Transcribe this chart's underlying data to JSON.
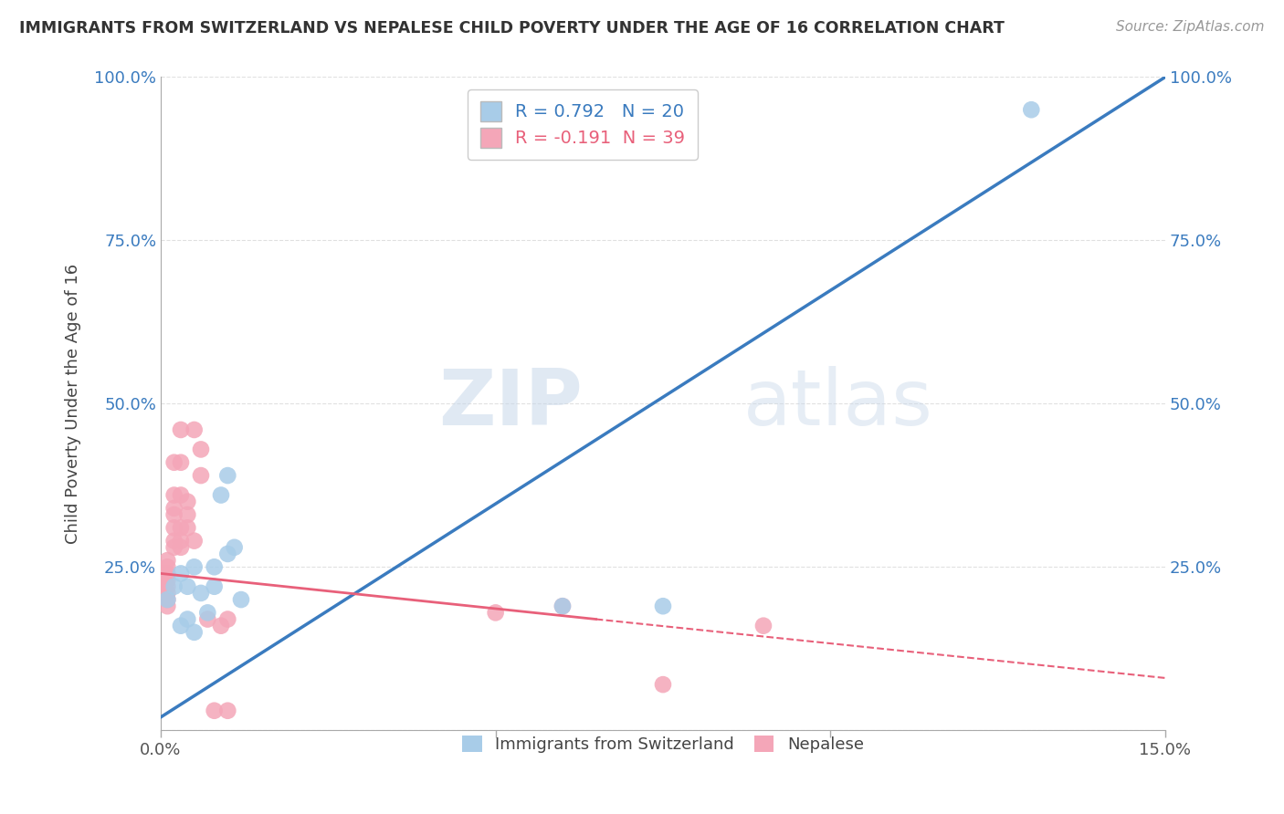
{
  "title": "IMMIGRANTS FROM SWITZERLAND VS NEPALESE CHILD POVERTY UNDER THE AGE OF 16 CORRELATION CHART",
  "source": "Source: ZipAtlas.com",
  "ylabel": "Child Poverty Under the Age of 16",
  "xlabel": "",
  "xlim": [
    0,
    0.15
  ],
  "ylim": [
    0,
    1.0
  ],
  "xticks": [
    0.0,
    0.05,
    0.1,
    0.15
  ],
  "xticklabels": [
    "0.0%",
    "",
    "",
    "15.0%"
  ],
  "yticks": [
    0.0,
    0.25,
    0.5,
    0.75,
    1.0
  ],
  "yticklabels_left": [
    "",
    "25.0%",
    "50.0%",
    "75.0%",
    "100.0%"
  ],
  "yticklabels_right": [
    "",
    "25.0%",
    "50.0%",
    "75.0%",
    "100.0%"
  ],
  "blue_R": 0.792,
  "blue_N": 20,
  "pink_R": -0.191,
  "pink_N": 39,
  "blue_color": "#A8CCE8",
  "pink_color": "#F4A6B8",
  "blue_line_color": "#3A7BBF",
  "pink_line_color": "#E8607A",
  "watermark_zip": "ZIP",
  "watermark_atlas": "atlas",
  "legend_label_blue": "Immigrants from Switzerland",
  "legend_label_pink": "Nepalese",
  "blue_scatter": [
    [
      0.001,
      0.2
    ],
    [
      0.002,
      0.22
    ],
    [
      0.003,
      0.16
    ],
    [
      0.003,
      0.24
    ],
    [
      0.004,
      0.22
    ],
    [
      0.004,
      0.17
    ],
    [
      0.005,
      0.15
    ],
    [
      0.005,
      0.25
    ],
    [
      0.006,
      0.21
    ],
    [
      0.007,
      0.18
    ],
    [
      0.008,
      0.22
    ],
    [
      0.008,
      0.25
    ],
    [
      0.009,
      0.36
    ],
    [
      0.01,
      0.39
    ],
    [
      0.01,
      0.27
    ],
    [
      0.011,
      0.28
    ],
    [
      0.012,
      0.2
    ],
    [
      0.06,
      0.19
    ],
    [
      0.075,
      0.19
    ],
    [
      0.13,
      0.95
    ]
  ],
  "pink_scatter": [
    [
      0.0005,
      0.24
    ],
    [
      0.0005,
      0.22
    ],
    [
      0.001,
      0.25
    ],
    [
      0.001,
      0.22
    ],
    [
      0.001,
      0.23
    ],
    [
      0.001,
      0.21
    ],
    [
      0.001,
      0.2
    ],
    [
      0.001,
      0.19
    ],
    [
      0.001,
      0.24
    ],
    [
      0.001,
      0.26
    ],
    [
      0.002,
      0.29
    ],
    [
      0.002,
      0.31
    ],
    [
      0.002,
      0.28
    ],
    [
      0.002,
      0.34
    ],
    [
      0.002,
      0.36
    ],
    [
      0.002,
      0.33
    ],
    [
      0.002,
      0.41
    ],
    [
      0.003,
      0.31
    ],
    [
      0.003,
      0.29
    ],
    [
      0.003,
      0.28
    ],
    [
      0.003,
      0.36
    ],
    [
      0.003,
      0.41
    ],
    [
      0.003,
      0.46
    ],
    [
      0.004,
      0.35
    ],
    [
      0.004,
      0.33
    ],
    [
      0.004,
      0.31
    ],
    [
      0.005,
      0.29
    ],
    [
      0.005,
      0.46
    ],
    [
      0.006,
      0.39
    ],
    [
      0.006,
      0.43
    ],
    [
      0.007,
      0.17
    ],
    [
      0.008,
      0.03
    ],
    [
      0.009,
      0.16
    ],
    [
      0.01,
      0.03
    ],
    [
      0.01,
      0.17
    ],
    [
      0.05,
      0.18
    ],
    [
      0.06,
      0.19
    ],
    [
      0.075,
      0.07
    ],
    [
      0.09,
      0.16
    ]
  ],
  "blue_line": [
    [
      0.0,
      0.02
    ],
    [
      0.15,
      1.0
    ]
  ],
  "pink_line_solid": [
    [
      0.0,
      0.24
    ],
    [
      0.065,
      0.17
    ]
  ],
  "pink_line_dashed": [
    [
      0.065,
      0.17
    ],
    [
      0.15,
      0.08
    ]
  ]
}
